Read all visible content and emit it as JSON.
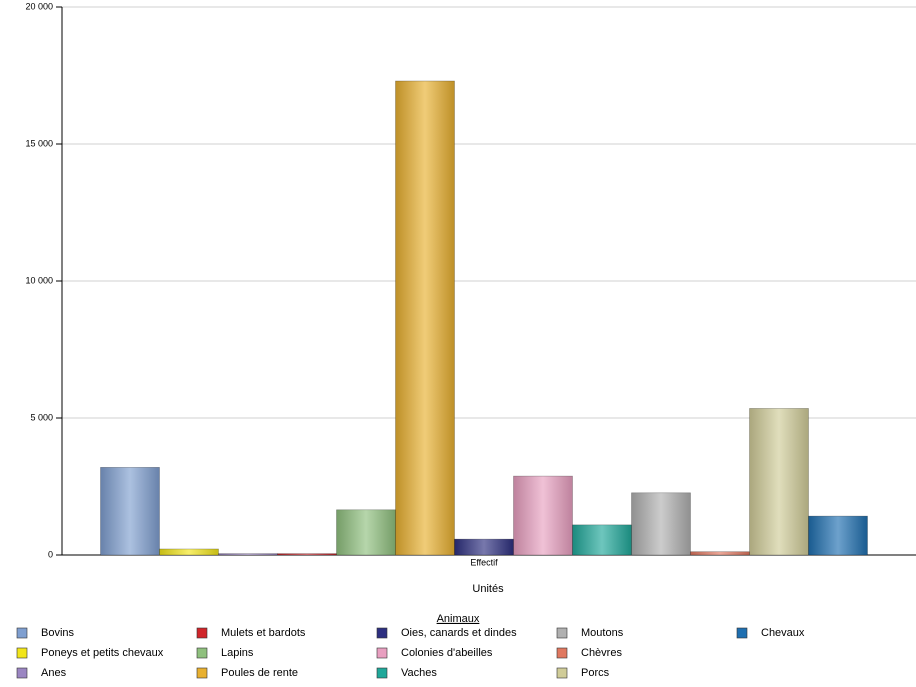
{
  "chart_data": {
    "type": "bar",
    "x_label": "Unités",
    "legend_title": "Animaux",
    "legend_position": "bottom",
    "grid": true,
    "categories": [
      "Effectif"
    ],
    "ylim": [
      0,
      20000
    ],
    "yticks": [
      0,
      {
        "value": 5000,
        "label": "5 000"
      },
      {
        "value": 10000,
        "label": "10 000"
      },
      {
        "value": 15000,
        "label": "15 000"
      },
      {
        "value": 20000,
        "label": "20 000"
      }
    ],
    "series": [
      {
        "name": "Bovins",
        "color": "#7f9fd0",
        "values": [
          3200
        ]
      },
      {
        "name": "Poneys et petits chevaux",
        "color": "#f2e51a",
        "values": [
          220
        ]
      },
      {
        "name": "Anes",
        "color": "#9b86c2",
        "values": [
          50
        ]
      },
      {
        "name": "Mulets et bardots",
        "color": "#d0252a",
        "values": [
          50
        ]
      },
      {
        "name": "Lapins",
        "color": "#8fc07e",
        "values": [
          1650
        ]
      },
      {
        "name": "Poules de rente",
        "color": "#e8b030",
        "values": [
          17300
        ]
      },
      {
        "name": "Oies, canards et dindes",
        "color": "#2d2f80",
        "values": [
          580
        ]
      },
      {
        "name": "Colonies d'abeilles",
        "color": "#e89fc0",
        "values": [
          2880
        ]
      },
      {
        "name": "Vaches",
        "color": "#20a89a",
        "values": [
          1100
        ]
      },
      {
        "name": "Moutons",
        "color": "#b0b0b0",
        "values": [
          2270
        ]
      },
      {
        "name": "Chèvres",
        "color": "#e07860",
        "values": [
          120
        ]
      },
      {
        "name": "Porcs",
        "color": "#d0cc98",
        "values": [
          5350
        ]
      },
      {
        "name": "Chevaux",
        "color": "#1f6fb0",
        "values": [
          1420
        ]
      }
    ]
  }
}
